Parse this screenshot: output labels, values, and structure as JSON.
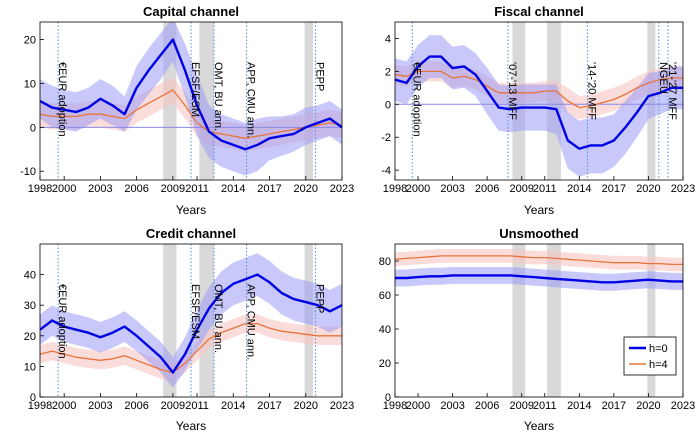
{
  "colors": {
    "blue": "#0000e6",
    "orange": "#e8743b",
    "blue_band": "#9a9af5",
    "orange_band": "#f7c7c2",
    "recession": "#d9d9d9",
    "event_line": "#4f8fd6",
    "zero_line": "#8a8ae8"
  },
  "legend": {
    "h0": "h=0",
    "h4": "h=4"
  },
  "chart_data": [
    {
      "type": "line",
      "title": "Capital channel",
      "xlabel": "Years",
      "ylabel": "",
      "xlim": [
        1998,
        2023
      ],
      "ylim": [
        -12,
        24
      ],
      "xticks": [
        "1998",
        "2000",
        "2003",
        "2006",
        "2009",
        "2011",
        "2014",
        "2017",
        "2020",
        "2023"
      ],
      "yticks": [
        "-10",
        "0",
        "10",
        "20"
      ],
      "zero_line": true,
      "recession_bands": [
        [
          2008.2,
          2009.3
        ],
        [
          2011.2,
          2012.4
        ],
        [
          2019.9,
          2020.6
        ]
      ],
      "events": [
        {
          "x": 1999.5,
          "label": "€EUR adoption"
        },
        {
          "x": 2010.5,
          "label": "EFSF/ESM"
        },
        {
          "x": 2012.4,
          "label": "OMT, BU ann."
        },
        {
          "x": 2015.1,
          "label": "APP, CMU ann."
        },
        {
          "x": 2020.8,
          "label": "PEPP"
        }
      ],
      "x": [
        1998,
        1999,
        2000,
        2001,
        2002,
        2003,
        2004,
        2005,
        2006,
        2007,
        2008,
        2009,
        2010,
        2011,
        2012,
        2013,
        2014,
        2015,
        2016,
        2017,
        2018,
        2019,
        2020,
        2021,
        2022,
        2023
      ],
      "series": [
        {
          "name": "h=0",
          "values": [
            6,
            4.5,
            4,
            3.5,
            4.5,
            6.5,
            5,
            3,
            9,
            13,
            16.5,
            20,
            13,
            5,
            -1,
            -3,
            -4,
            -5,
            -4,
            -2.5,
            -2,
            -1.5,
            0,
            1,
            2,
            0
          ],
          "lower": [
            2,
            0,
            -0.5,
            -1,
            0.5,
            2,
            0.5,
            -1,
            4,
            7.5,
            11,
            15,
            7,
            -2,
            -7,
            -9,
            -10,
            -11,
            -10,
            -7.5,
            -6.5,
            -5.5,
            -4,
            -3,
            -2,
            -4
          ],
          "upper": [
            11,
            9.5,
            8.5,
            8,
            9,
            11,
            9.5,
            7,
            14,
            18,
            21.5,
            25,
            19,
            12,
            5,
            3,
            2,
            1,
            2,
            2.5,
            2.5,
            3,
            4.5,
            5,
            6,
            4
          ]
        },
        {
          "name": "h=4",
          "values": [
            3,
            2.5,
            2.5,
            2.5,
            3,
            3,
            2.5,
            2,
            4,
            5.5,
            7,
            8.5,
            5,
            1,
            -1,
            -1.5,
            -2,
            -2.5,
            -2,
            -1.5,
            -1,
            -0.5,
            0,
            0.5,
            1,
            0.5
          ],
          "lower": [
            0,
            -0.5,
            -0.5,
            -0.5,
            0,
            0,
            -0.5,
            -1,
            1,
            2.5,
            4,
            5.5,
            2,
            -2,
            -4,
            -4.5,
            -5,
            -5.5,
            -5,
            -4.5,
            -4,
            -3.5,
            -3,
            -2.5,
            -2,
            -2.5
          ],
          "upper": [
            6,
            5.5,
            5.5,
            5.5,
            6,
            6,
            5.5,
            5,
            7,
            8.5,
            10,
            11.5,
            8,
            4,
            2,
            1.5,
            1,
            0.5,
            1,
            1.5,
            2,
            2.5,
            3,
            3.5,
            4,
            3.5
          ]
        }
      ]
    },
    {
      "type": "line",
      "title": "Fiscal channel",
      "xlabel": "Years",
      "ylabel": "",
      "xlim": [
        1998,
        2023
      ],
      "ylim": [
        -4.6,
        5
      ],
      "xticks": [
        "1998",
        "2000",
        "2003",
        "2006",
        "2009",
        "2011",
        "2014",
        "2017",
        "2020",
        "2023"
      ],
      "yticks": [
        "-4",
        "-2",
        "0",
        "2",
        "4"
      ],
      "zero_line": true,
      "recession_bands": [
        [
          2008.2,
          2009.3
        ],
        [
          2011.2,
          2012.4
        ],
        [
          2019.9,
          2020.6
        ]
      ],
      "events": [
        {
          "x": 1999.5,
          "label": "€EUR adoption"
        },
        {
          "x": 2007.8,
          "label": "'07-'13 MFF"
        },
        {
          "x": 2014.7,
          "label": "'14-'20 MFF"
        },
        {
          "x": 2020.9,
          "label": "NGEU"
        },
        {
          "x": 2021.7,
          "label": "'21-'27 MFF"
        }
      ],
      "x": [
        1998,
        1999,
        2000,
        2001,
        2002,
        2003,
        2004,
        2005,
        2006,
        2007,
        2008,
        2009,
        2010,
        2011,
        2012,
        2013,
        2014,
        2015,
        2016,
        2017,
        2018,
        2019,
        2020,
        2021,
        2022,
        2023
      ],
      "series": [
        {
          "name": "h=0",
          "values": [
            1.5,
            1.3,
            2.3,
            2.9,
            2.9,
            2.2,
            2.3,
            1.8,
            0.8,
            -0.2,
            -0.3,
            -0.2,
            -0.2,
            -0.2,
            -0.3,
            -2.2,
            -2.7,
            -2.5,
            -2.5,
            -2.2,
            -1.4,
            -0.5,
            0.5,
            0.7,
            1,
            1
          ],
          "lower": [
            0.2,
            0,
            1,
            1.6,
            1.6,
            0.9,
            1,
            0.5,
            -0.6,
            -1.6,
            -1.7,
            -1.6,
            -1.6,
            -1.6,
            -1.8,
            -3.9,
            -4.4,
            -4.2,
            -4.2,
            -3.8,
            -3,
            -2,
            -0.9,
            -0.6,
            -0.3,
            -0.3
          ],
          "upper": [
            2.8,
            2.6,
            3.6,
            4.2,
            4.2,
            3.5,
            3.6,
            3.1,
            2.2,
            1.2,
            1.1,
            1.2,
            1.2,
            1.2,
            1.2,
            -0.5,
            -1,
            -0.8,
            -0.8,
            -0.6,
            0.2,
            1,
            1.9,
            2,
            2.3,
            2.3
          ]
        },
        {
          "name": "h=4",
          "values": [
            1.8,
            1.7,
            2,
            2,
            2,
            1.6,
            1.7,
            1.5,
            1.1,
            0.7,
            0.7,
            0.7,
            0.7,
            0.8,
            0.8,
            0.2,
            -0.2,
            -0.1,
            0.1,
            0.3,
            0.6,
            1,
            1.3,
            1.5,
            1.6,
            1.6
          ],
          "lower": [
            1.2,
            1.1,
            1.4,
            1.4,
            1.4,
            1,
            1.1,
            0.9,
            0.5,
            0.1,
            0.1,
            0.1,
            0.1,
            0.2,
            0.2,
            -0.6,
            -0.9,
            -0.8,
            -0.6,
            -0.4,
            -0.1,
            0.3,
            0.6,
            0.8,
            0.9,
            0.9
          ],
          "upper": [
            2.4,
            2.3,
            2.6,
            2.6,
            2.6,
            2.2,
            2.3,
            2.1,
            1.7,
            1.3,
            1.3,
            1.3,
            1.3,
            1.4,
            1.4,
            1,
            0.5,
            0.6,
            0.8,
            1,
            1.3,
            1.7,
            2,
            2.2,
            2.3,
            2.3
          ]
        }
      ]
    },
    {
      "type": "line",
      "title": "Credit channel",
      "xlabel": "Years",
      "ylabel": "",
      "xlim": [
        1998,
        2023
      ],
      "ylim": [
        0,
        50
      ],
      "xticks": [
        "1998",
        "2000",
        "2003",
        "2006",
        "2009",
        "2011",
        "2014",
        "2017",
        "2020",
        "2023"
      ],
      "yticks": [
        "0",
        "10",
        "20",
        "30",
        "40"
      ],
      "zero_line": false,
      "recession_bands": [
        [
          2008.2,
          2009.3
        ],
        [
          2011.2,
          2012.4
        ],
        [
          2019.9,
          2020.6
        ]
      ],
      "events": [
        {
          "x": 1999.5,
          "label": "€EUR adoption"
        },
        {
          "x": 2010.5,
          "label": "EFSF/ESM"
        },
        {
          "x": 2012.4,
          "label": "OMT, BU ann."
        },
        {
          "x": 2015.1,
          "label": "APP, CMU ann."
        },
        {
          "x": 2020.8,
          "label": "PEPP"
        }
      ],
      "x": [
        1998,
        1999,
        2000,
        2001,
        2002,
        2003,
        2004,
        2005,
        2006,
        2007,
        2008,
        2009,
        2010,
        2011,
        2012,
        2013,
        2014,
        2015,
        2016,
        2017,
        2018,
        2019,
        2020,
        2021,
        2022,
        2023
      ],
      "series": [
        {
          "name": "h=0",
          "values": [
            22,
            25,
            23,
            22,
            21,
            19.5,
            21,
            23,
            20,
            16.5,
            13,
            8,
            14,
            22,
            29,
            34,
            37,
            38.5,
            40,
            37.5,
            34,
            32,
            31,
            30,
            28,
            30
          ],
          "lower": [
            17,
            20,
            18,
            17,
            16,
            14.5,
            16,
            18,
            15,
            11.5,
            8,
            3,
            8.5,
            15.5,
            22,
            27,
            30,
            31.5,
            33,
            30.5,
            27,
            25,
            24,
            23,
            21,
            23
          ],
          "upper": [
            27,
            30,
            28,
            27,
            26,
            24.5,
            26,
            28,
            25,
            21.5,
            18,
            13,
            19.5,
            28.5,
            36,
            41,
            44,
            45.5,
            47,
            44.5,
            41,
            39,
            38,
            37,
            35,
            37
          ]
        },
        {
          "name": "h=4",
          "values": [
            14,
            15,
            14,
            13,
            12.5,
            12,
            12.5,
            13.5,
            12,
            10.5,
            9,
            8,
            11,
            15,
            19,
            21,
            22.5,
            24,
            24,
            22.5,
            21.5,
            21,
            20.5,
            20,
            20,
            20
          ],
          "lower": [
            11,
            12,
            11,
            10,
            9.5,
            9,
            9.5,
            10.5,
            9,
            7.5,
            6,
            5,
            8,
            12,
            16,
            18,
            19.5,
            21,
            21,
            19.5,
            18.5,
            18,
            17.5,
            17,
            17,
            17
          ],
          "upper": [
            17,
            18,
            17,
            16,
            15.5,
            15,
            15.5,
            16.5,
            15,
            13.5,
            12,
            11,
            14,
            18,
            22,
            24,
            25.5,
            27,
            27,
            25.5,
            24.5,
            24,
            23.5,
            23,
            23,
            23
          ]
        }
      ]
    },
    {
      "type": "line",
      "title": "Unsmoothed",
      "xlabel": "Years",
      "ylabel": "",
      "xlim": [
        1998,
        2023
      ],
      "ylim": [
        0,
        90
      ],
      "xticks": [
        "1998",
        "2000",
        "2003",
        "2006",
        "2009",
        "2011",
        "2014",
        "2017",
        "2020",
        "2023"
      ],
      "yticks": [
        "0",
        "20",
        "40",
        "60",
        "80"
      ],
      "zero_line": false,
      "recession_bands": [
        [
          2008.2,
          2009.3
        ],
        [
          2011.2,
          2012.4
        ],
        [
          2019.9,
          2020.6
        ]
      ],
      "events": [],
      "legend_position": "bottom-right",
      "x": [
        1998,
        1999,
        2000,
        2001,
        2002,
        2003,
        2004,
        2005,
        2006,
        2007,
        2008,
        2009,
        2010,
        2011,
        2012,
        2013,
        2014,
        2015,
        2016,
        2017,
        2018,
        2019,
        2020,
        2021,
        2022,
        2023
      ],
      "series": [
        {
          "name": "h=0",
          "values": [
            70,
            70,
            70.5,
            71,
            71,
            71.5,
            71.5,
            71.5,
            71.5,
            71.5,
            71.5,
            71,
            70.5,
            70,
            69.5,
            69,
            68.5,
            68,
            67.5,
            67.5,
            68,
            68.5,
            69,
            68.5,
            68,
            68
          ],
          "lower": [
            65,
            65,
            65.5,
            66,
            66,
            66.5,
            66.5,
            66.5,
            66.5,
            66.5,
            66.5,
            66,
            65.5,
            65,
            64.5,
            64,
            63.5,
            63,
            62.5,
            62.5,
            63,
            63.5,
            64,
            63.5,
            63,
            63
          ],
          "upper": [
            75,
            75,
            75.5,
            76,
            76,
            76.5,
            76.5,
            76.5,
            76.5,
            76.5,
            76.5,
            76,
            75.5,
            75,
            74.5,
            74,
            73.5,
            73,
            72.5,
            72.5,
            73,
            73.5,
            74,
            73.5,
            73,
            73
          ]
        },
        {
          "name": "h=4",
          "values": [
            81,
            81.5,
            82,
            82.5,
            83,
            83,
            83,
            83,
            83,
            83,
            83,
            82.5,
            82,
            82,
            81.5,
            81,
            80.5,
            80,
            79.5,
            79,
            79,
            79,
            78.5,
            78.5,
            78,
            78
          ],
          "lower": [
            77,
            77.5,
            78,
            78.5,
            79,
            79,
            79,
            79,
            79,
            79,
            79,
            78.5,
            78,
            78,
            77.5,
            77,
            76.5,
            76,
            75.5,
            75,
            75,
            75,
            74.5,
            74.5,
            74,
            74
          ],
          "upper": [
            85,
            85.5,
            86,
            86.5,
            87,
            87,
            87,
            87,
            87,
            87,
            87,
            86.5,
            86,
            86,
            85.5,
            85,
            84.5,
            84,
            83.5,
            83,
            83,
            83,
            82.5,
            82.5,
            82,
            82
          ]
        }
      ]
    }
  ]
}
